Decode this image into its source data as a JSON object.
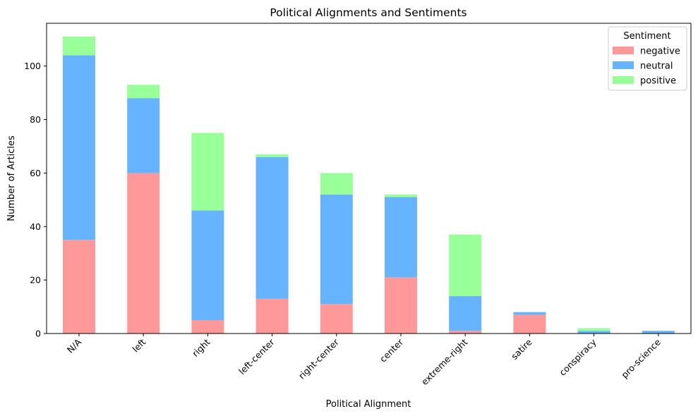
{
  "chart_data": {
    "type": "bar",
    "stacked": true,
    "title": "Political Alignments and Sentiments",
    "xlabel": "Political Alignment",
    "ylabel": "Number of Articles",
    "ylim": [
      0,
      116
    ],
    "yticks": [
      0,
      20,
      40,
      60,
      80,
      100
    ],
    "categories": [
      "N/A",
      "left",
      "right",
      "left-center",
      "right-center",
      "center",
      "extreme-right",
      "satire",
      "conspiracy",
      "pro-science"
    ],
    "series": [
      {
        "name": "negative",
        "color": "#ff9999",
        "values": [
          35,
          60,
          5,
          13,
          11,
          21,
          1,
          7,
          0,
          0
        ]
      },
      {
        "name": "neutral",
        "color": "#66b3ff",
        "values": [
          69,
          28,
          41,
          53,
          41,
          30,
          13,
          1,
          1,
          1
        ]
      },
      {
        "name": "positive",
        "color": "#99ff99",
        "values": [
          7,
          5,
          29,
          1,
          8,
          1,
          23,
          0,
          1,
          0
        ]
      }
    ],
    "legend": {
      "title": "Sentiment",
      "position": "top-right"
    },
    "grid": false
  }
}
